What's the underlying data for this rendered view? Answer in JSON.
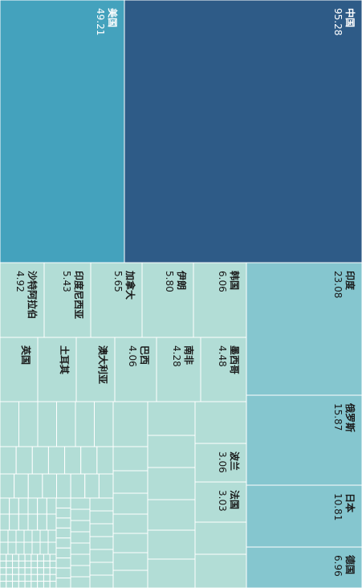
{
  "chart_data": {
    "type": "treemap",
    "orientation": "rotated-90-clockwise",
    "colors": {
      "china": "#2e5b87",
      "usa": "#44a2bd",
      "mid": "#85c6cf",
      "light": "#b2ddd6",
      "border": "#ffffff",
      "text_dark": "#ffffff",
      "text_light": "#1a1a1a"
    },
    "items": [
      {
        "name": "中国",
        "value": "95.28",
        "shade": "china"
      },
      {
        "name": "美国",
        "value": "49.21",
        "shade": "usa"
      },
      {
        "name": "印度",
        "value": "23.08",
        "shade": "mid"
      },
      {
        "name": "俄罗斯",
        "value": "15.87",
        "shade": "mid"
      },
      {
        "name": "日本",
        "value": "10.81",
        "shade": "mid"
      },
      {
        "name": "德国",
        "value": "6.96",
        "shade": "mid"
      },
      {
        "name": "韩国",
        "value": "6.06",
        "shade": "light"
      },
      {
        "name": "伊朗",
        "value": "5.80",
        "shade": "light"
      },
      {
        "name": "加拿大",
        "value": "5.65",
        "shade": "light"
      },
      {
        "name": "印度尼西亚",
        "value": "5.43",
        "shade": "light"
      },
      {
        "name": "沙特阿拉伯",
        "value": "4.92",
        "shade": "light"
      },
      {
        "name": "墨西哥",
        "value": "4.48",
        "shade": "light"
      },
      {
        "name": "南非",
        "value": "4.28",
        "shade": "light"
      },
      {
        "name": "巴西",
        "value": "4.06",
        "shade": "light"
      },
      {
        "name": "澳大利亚",
        "value": "",
        "shade": "light"
      },
      {
        "name": "土耳其",
        "value": "",
        "shade": "light"
      },
      {
        "name": "英国",
        "value": "",
        "shade": "light"
      },
      {
        "name": "波兰",
        "value": "3.06",
        "shade": "light"
      },
      {
        "name": "法国",
        "value": "3.03",
        "shade": "light"
      }
    ]
  }
}
